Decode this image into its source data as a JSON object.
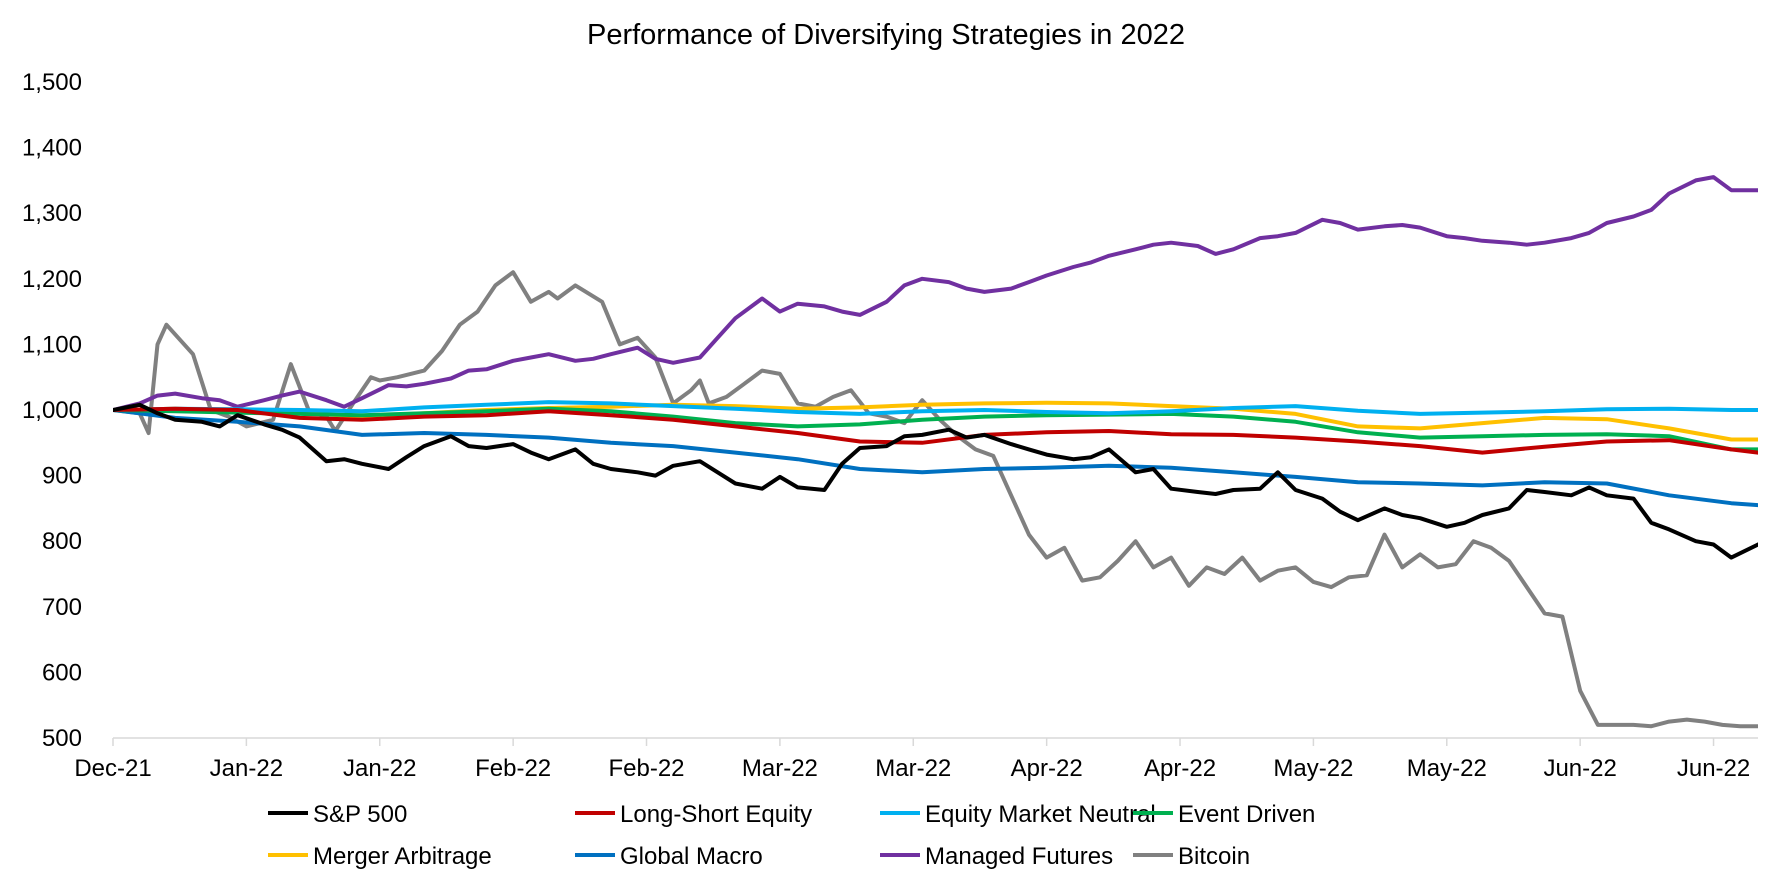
{
  "chart_data": {
    "type": "line",
    "title": "Performance of Diversifying Strategies in 2022",
    "xlabel": "",
    "ylabel": "",
    "ylim": [
      500,
      1500
    ],
    "yticks": [
      "500",
      "600",
      "700",
      "800",
      "900",
      "1,000",
      "1,100",
      "1,200",
      "1,300",
      "1,400",
      "1,500"
    ],
    "ytick_values": [
      500,
      600,
      700,
      800,
      900,
      1000,
      1100,
      1200,
      1300,
      1400,
      1500
    ],
    "xticks": [
      "Dec-21",
      "Jan-22",
      "Jan-22",
      "Feb-22",
      "Feb-22",
      "Mar-22",
      "Mar-22",
      "Apr-22",
      "Apr-22",
      "May-22",
      "May-22",
      "Jun-22",
      "Jun-22"
    ],
    "xtick_dates": [
      "2021-12-31",
      "2022-01-15",
      "2022-01-30",
      "2022-02-14",
      "2022-03-01",
      "2022-03-16",
      "2022-03-31",
      "2022-04-15",
      "2022-04-30",
      "2022-05-15",
      "2022-05-30",
      "2022-06-14",
      "2022-06-29"
    ],
    "xlim": [
      "2021-12-31",
      "2022-07-04"
    ],
    "grid": false,
    "legend_position": "bottom",
    "series": [
      {
        "name": "S&P 500",
        "color": "#000000",
        "x": [
          "2021-12-31",
          "2022-01-03",
          "2022-01-05",
          "2022-01-07",
          "2022-01-10",
          "2022-01-12",
          "2022-01-14",
          "2022-01-17",
          "2022-01-19",
          "2022-01-21",
          "2022-01-24",
          "2022-01-26",
          "2022-01-28",
          "2022-01-31",
          "2022-02-02",
          "2022-02-04",
          "2022-02-07",
          "2022-02-09",
          "2022-02-11",
          "2022-02-14",
          "2022-02-16",
          "2022-02-18",
          "2022-02-21",
          "2022-02-23",
          "2022-02-25",
          "2022-02-28",
          "2022-03-02",
          "2022-03-04",
          "2022-03-07",
          "2022-03-09",
          "2022-03-11",
          "2022-03-14",
          "2022-03-16",
          "2022-03-18",
          "2022-03-21",
          "2022-03-23",
          "2022-03-25",
          "2022-03-28",
          "2022-03-30",
          "2022-04-01",
          "2022-04-04",
          "2022-04-06",
          "2022-04-08",
          "2022-04-11",
          "2022-04-13",
          "2022-04-15",
          "2022-04-18",
          "2022-04-20",
          "2022-04-22",
          "2022-04-25",
          "2022-04-27",
          "2022-04-29",
          "2022-05-02",
          "2022-05-04",
          "2022-05-06",
          "2022-05-09",
          "2022-05-11",
          "2022-05-13",
          "2022-05-16",
          "2022-05-18",
          "2022-05-20",
          "2022-05-23",
          "2022-05-25",
          "2022-05-27",
          "2022-05-30",
          "2022-06-01",
          "2022-06-03",
          "2022-06-06",
          "2022-06-08",
          "2022-06-10",
          "2022-06-13",
          "2022-06-15",
          "2022-06-17",
          "2022-06-20",
          "2022-06-22",
          "2022-06-24",
          "2022-06-27",
          "2022-06-29",
          "2022-07-01",
          "2022-07-04"
        ],
        "y": [
          1000,
          1008,
          995,
          985,
          982,
          975,
          992,
          978,
          970,
          958,
          922,
          925,
          918,
          910,
          928,
          945,
          960,
          945,
          942,
          948,
          935,
          925,
          940,
          918,
          910,
          905,
          900,
          915,
          922,
          905,
          888,
          880,
          898,
          882,
          878,
          918,
          942,
          945,
          960,
          962,
          970,
          958,
          962,
          948,
          940,
          932,
          925,
          928,
          940,
          905,
          910,
          880,
          875,
          872,
          878,
          880,
          905,
          878,
          865,
          845,
          832,
          850,
          840,
          835,
          822,
          828,
          840,
          850,
          878,
          875,
          870,
          882,
          870,
          865,
          828,
          818,
          800,
          795,
          775,
          795
        ]
      },
      {
        "name": "Long-Short Equity",
        "color": "#c00000",
        "x": [
          "2021-12-31",
          "2022-01-07",
          "2022-01-14",
          "2022-01-21",
          "2022-01-28",
          "2022-02-04",
          "2022-02-11",
          "2022-02-18",
          "2022-02-25",
          "2022-03-04",
          "2022-03-11",
          "2022-03-18",
          "2022-03-25",
          "2022-04-01",
          "2022-04-08",
          "2022-04-15",
          "2022-04-22",
          "2022-04-29",
          "2022-05-06",
          "2022-05-13",
          "2022-05-20",
          "2022-05-27",
          "2022-06-03",
          "2022-06-10",
          "2022-06-17",
          "2022-06-24",
          "2022-07-01",
          "2022-07-04"
        ],
        "y": [
          1000,
          1002,
          1000,
          988,
          985,
          990,
          992,
          998,
          992,
          985,
          975,
          965,
          952,
          950,
          962,
          966,
          968,
          963,
          962,
          958,
          952,
          945,
          935,
          944,
          952,
          954,
          940,
          935
        ]
      },
      {
        "name": "Equity Market Neutral",
        "color": "#00b0f0",
        "x": [
          "2021-12-31",
          "2022-01-07",
          "2022-01-14",
          "2022-01-21",
          "2022-01-28",
          "2022-02-04",
          "2022-02-11",
          "2022-02-18",
          "2022-02-25",
          "2022-03-04",
          "2022-03-11",
          "2022-03-18",
          "2022-03-25",
          "2022-04-01",
          "2022-04-08",
          "2022-04-15",
          "2022-04-22",
          "2022-04-29",
          "2022-05-06",
          "2022-05-13",
          "2022-05-20",
          "2022-05-27",
          "2022-06-03",
          "2022-06-10",
          "2022-06-17",
          "2022-06-24",
          "2022-07-01",
          "2022-07-04"
        ],
        "y": [
          1000,
          1002,
          1001,
          1000,
          998,
          1004,
          1008,
          1012,
          1010,
          1006,
          1002,
          997,
          994,
          998,
          1000,
          997,
          995,
          998,
          1003,
          1006,
          999,
          994,
          996,
          998,
          1001,
          1002,
          1000,
          1000
        ]
      },
      {
        "name": "Event Driven",
        "color": "#00b050",
        "x": [
          "2021-12-31",
          "2022-01-07",
          "2022-01-14",
          "2022-01-21",
          "2022-01-28",
          "2022-02-04",
          "2022-02-11",
          "2022-02-18",
          "2022-02-25",
          "2022-03-04",
          "2022-03-11",
          "2022-03-18",
          "2022-03-25",
          "2022-04-01",
          "2022-04-08",
          "2022-04-15",
          "2022-04-22",
          "2022-04-29",
          "2022-05-06",
          "2022-05-13",
          "2022-05-20",
          "2022-05-27",
          "2022-06-03",
          "2022-06-10",
          "2022-06-17",
          "2022-06-24",
          "2022-07-01",
          "2022-07-04"
        ],
        "y": [
          1000,
          998,
          996,
          994,
          992,
          995,
          998,
          1002,
          998,
          990,
          980,
          975,
          978,
          985,
          990,
          992,
          993,
          994,
          990,
          982,
          966,
          958,
          960,
          962,
          963,
          960,
          940,
          940
        ]
      },
      {
        "name": "Merger Arbitrage",
        "color": "#ffc000",
        "x": [
          "2021-12-31",
          "2022-01-07",
          "2022-01-14",
          "2022-01-21",
          "2022-01-28",
          "2022-02-04",
          "2022-02-11",
          "2022-02-18",
          "2022-02-25",
          "2022-03-04",
          "2022-03-11",
          "2022-03-18",
          "2022-03-25",
          "2022-04-01",
          "2022-04-08",
          "2022-04-15",
          "2022-04-22",
          "2022-04-29",
          "2022-05-06",
          "2022-05-13",
          "2022-05-20",
          "2022-05-27",
          "2022-06-03",
          "2022-06-10",
          "2022-06-17",
          "2022-06-24",
          "2022-07-01",
          "2022-07-04"
        ],
        "y": [
          1000,
          1002,
          999,
          996,
          990,
          995,
          1000,
          1003,
          1005,
          1008,
          1006,
          1002,
          1004,
          1008,
          1010,
          1011,
          1010,
          1006,
          1002,
          994,
          975,
          972,
          980,
          988,
          986,
          972,
          955,
          955
        ]
      },
      {
        "name": "Global Macro",
        "color": "#0070c0",
        "x": [
          "2021-12-31",
          "2022-01-07",
          "2022-01-14",
          "2022-01-21",
          "2022-01-28",
          "2022-02-04",
          "2022-02-11",
          "2022-02-18",
          "2022-02-25",
          "2022-03-04",
          "2022-03-11",
          "2022-03-18",
          "2022-03-25",
          "2022-04-01",
          "2022-04-08",
          "2022-04-15",
          "2022-04-22",
          "2022-04-29",
          "2022-05-06",
          "2022-05-13",
          "2022-05-20",
          "2022-05-27",
          "2022-06-03",
          "2022-06-10",
          "2022-06-17",
          "2022-06-24",
          "2022-07-01",
          "2022-07-04"
        ],
        "y": [
          1000,
          988,
          982,
          975,
          962,
          965,
          962,
          958,
          950,
          945,
          935,
          925,
          910,
          905,
          910,
          912,
          915,
          912,
          905,
          898,
          890,
          888,
          885,
          890,
          888,
          870,
          858,
          855
        ]
      },
      {
        "name": "Managed Futures",
        "color": "#7030a0",
        "x": [
          "2021-12-31",
          "2022-01-03",
          "2022-01-05",
          "2022-01-07",
          "2022-01-10",
          "2022-01-12",
          "2022-01-14",
          "2022-01-17",
          "2022-01-19",
          "2022-01-21",
          "2022-01-24",
          "2022-01-26",
          "2022-01-28",
          "2022-01-31",
          "2022-02-02",
          "2022-02-04",
          "2022-02-07",
          "2022-02-09",
          "2022-02-11",
          "2022-02-14",
          "2022-02-16",
          "2022-02-18",
          "2022-02-21",
          "2022-02-23",
          "2022-02-25",
          "2022-02-28",
          "2022-03-02",
          "2022-03-04",
          "2022-03-07",
          "2022-03-09",
          "2022-03-11",
          "2022-03-14",
          "2022-03-16",
          "2022-03-18",
          "2022-03-21",
          "2022-03-23",
          "2022-03-25",
          "2022-03-28",
          "2022-03-30",
          "2022-04-01",
          "2022-04-04",
          "2022-04-06",
          "2022-04-08",
          "2022-04-11",
          "2022-04-13",
          "2022-04-15",
          "2022-04-18",
          "2022-04-20",
          "2022-04-22",
          "2022-04-25",
          "2022-04-27",
          "2022-04-29",
          "2022-05-02",
          "2022-05-04",
          "2022-05-06",
          "2022-05-09",
          "2022-05-11",
          "2022-05-13",
          "2022-05-16",
          "2022-05-18",
          "2022-05-20",
          "2022-05-23",
          "2022-05-25",
          "2022-05-27",
          "2022-05-30",
          "2022-06-01",
          "2022-06-03",
          "2022-06-06",
          "2022-06-08",
          "2022-06-10",
          "2022-06-13",
          "2022-06-15",
          "2022-06-17",
          "2022-06-20",
          "2022-06-22",
          "2022-06-24",
          "2022-06-27",
          "2022-06-29",
          "2022-07-01",
          "2022-07-04"
        ],
        "y": [
          1000,
          1010,
          1022,
          1025,
          1018,
          1015,
          1005,
          1015,
          1022,
          1028,
          1015,
          1005,
          1018,
          1038,
          1036,
          1040,
          1048,
          1060,
          1062,
          1075,
          1080,
          1085,
          1075,
          1078,
          1085,
          1095,
          1078,
          1072,
          1080,
          1110,
          1140,
          1170,
          1150,
          1162,
          1158,
          1150,
          1145,
          1165,
          1190,
          1200,
          1195,
          1185,
          1180,
          1185,
          1195,
          1205,
          1218,
          1225,
          1235,
          1245,
          1252,
          1255,
          1250,
          1238,
          1245,
          1262,
          1265,
          1270,
          1290,
          1285,
          1275,
          1280,
          1282,
          1278,
          1265,
          1262,
          1258,
          1255,
          1252,
          1255,
          1262,
          1270,
          1285,
          1295,
          1305,
          1330,
          1350,
          1355,
          1335,
          1335
        ]
      },
      {
        "name": "Bitcoin",
        "color": "#808080",
        "x": [
          "2021-12-31",
          "2022-01-03",
          "2022-01-04",
          "2022-01-05",
          "2022-01-06",
          "2022-01-09",
          "2022-01-11",
          "2022-01-13",
          "2022-01-15",
          "2022-01-18",
          "2022-01-20",
          "2022-01-22",
          "2022-01-24",
          "2022-01-25",
          "2022-01-27",
          "2022-01-29",
          "2022-01-30",
          "2022-02-01",
          "2022-02-04",
          "2022-02-06",
          "2022-02-08",
          "2022-02-10",
          "2022-02-12",
          "2022-02-14",
          "2022-02-16",
          "2022-02-18",
          "2022-02-19",
          "2022-02-21",
          "2022-02-24",
          "2022-02-26",
          "2022-02-28",
          "2022-03-02",
          "2022-03-04",
          "2022-03-06",
          "2022-03-07",
          "2022-03-08",
          "2022-03-10",
          "2022-03-12",
          "2022-03-14",
          "2022-03-16",
          "2022-03-18",
          "2022-03-20",
          "2022-03-22",
          "2022-03-24",
          "2022-03-26",
          "2022-03-28",
          "2022-03-30",
          "2022-04-01",
          "2022-04-03",
          "2022-04-05",
          "2022-04-07",
          "2022-04-09",
          "2022-04-11",
          "2022-04-13",
          "2022-04-15",
          "2022-04-17",
          "2022-04-19",
          "2022-04-21",
          "2022-04-23",
          "2022-04-25",
          "2022-04-27",
          "2022-04-29",
          "2022-05-01",
          "2022-05-03",
          "2022-05-05",
          "2022-05-07",
          "2022-05-09",
          "2022-05-11",
          "2022-05-13",
          "2022-05-15",
          "2022-05-17",
          "2022-05-19",
          "2022-05-21",
          "2022-05-23",
          "2022-05-25",
          "2022-05-27",
          "2022-05-29",
          "2022-05-31",
          "2022-06-02",
          "2022-06-04",
          "2022-06-06",
          "2022-06-08",
          "2022-06-10",
          "2022-06-12",
          "2022-06-14",
          "2022-06-16",
          "2022-06-18",
          "2022-06-20",
          "2022-06-22",
          "2022-06-24",
          "2022-06-26",
          "2022-06-28",
          "2022-06-30",
          "2022-07-02",
          "2022-07-04"
        ],
        "y": [
          1000,
          995,
          965,
          1100,
          1130,
          1085,
          1000,
          990,
          975,
          985,
          1070,
          1000,
          990,
          968,
          1010,
          1050,
          1045,
          1050,
          1060,
          1090,
          1130,
          1150,
          1190,
          1210,
          1165,
          1180,
          1170,
          1190,
          1165,
          1100,
          1110,
          1080,
          1010,
          1030,
          1045,
          1010,
          1020,
          1040,
          1060,
          1055,
          1010,
          1005,
          1020,
          1030,
          995,
          990,
          980,
          1015,
          985,
          960,
          940,
          930,
          870,
          810,
          775,
          790,
          740,
          745,
          770,
          800,
          760,
          775,
          732,
          760,
          750,
          775,
          740,
          755,
          760,
          738,
          730,
          745,
          748,
          810,
          760,
          780,
          760,
          765,
          800,
          790,
          770,
          730,
          690,
          685,
          572,
          520,
          520,
          520,
          518,
          525,
          528,
          525,
          520,
          518,
          518
        ]
      }
    ]
  }
}
